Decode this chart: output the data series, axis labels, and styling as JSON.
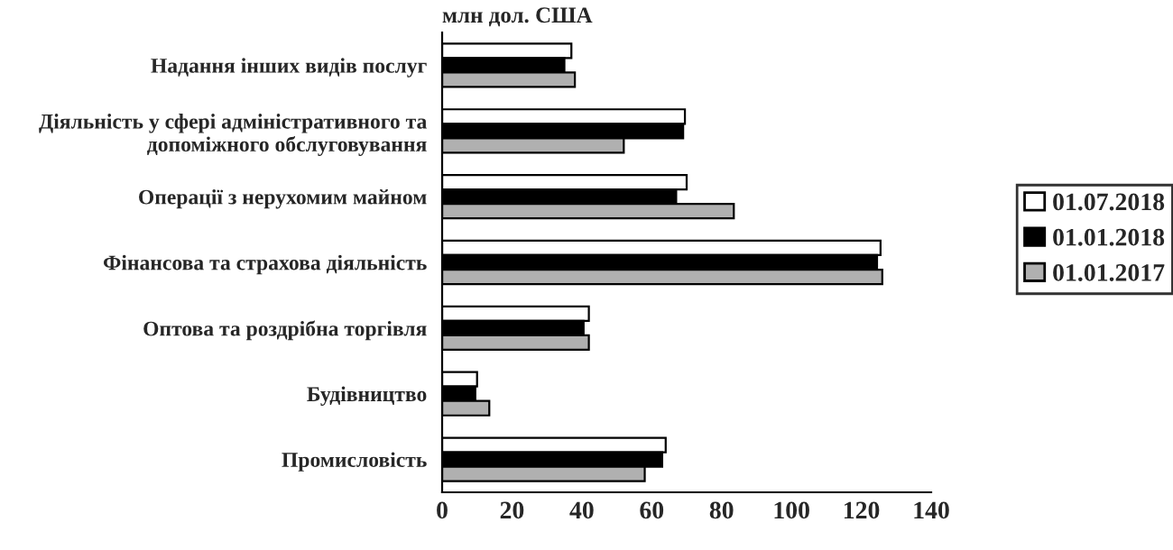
{
  "chart_data": {
    "type": "bar",
    "orientation": "horizontal",
    "title": "млн дол. США",
    "categories": [
      "Надання інших видів послуг",
      "Діяльність у сфері адміністративного та допоміжного обслуговування",
      "Операції з нерухомим майном",
      "Фінансова та страхова діяльність",
      "Оптова та роздрібна торгівля",
      "Будівництво",
      "Промисловість"
    ],
    "series": [
      {
        "name": "01.07.2018",
        "color": "#ffffff",
        "values": [
          37,
          69.5,
          70,
          125.5,
          42,
          10,
          64
        ]
      },
      {
        "name": "01.01.2018",
        "color": "#000000",
        "values": [
          35,
          69,
          67,
          124.5,
          40.5,
          9.5,
          63
        ]
      },
      {
        "name": "01.01.2017",
        "color": "#b0b0b0",
        "values": [
          38,
          52,
          83.5,
          126,
          42,
          13.5,
          58
        ]
      }
    ],
    "xlim": [
      0,
      140
    ],
    "xticks": [
      0,
      20,
      40,
      60,
      80,
      100,
      120,
      140
    ],
    "legend": "right",
    "grid": false
  }
}
